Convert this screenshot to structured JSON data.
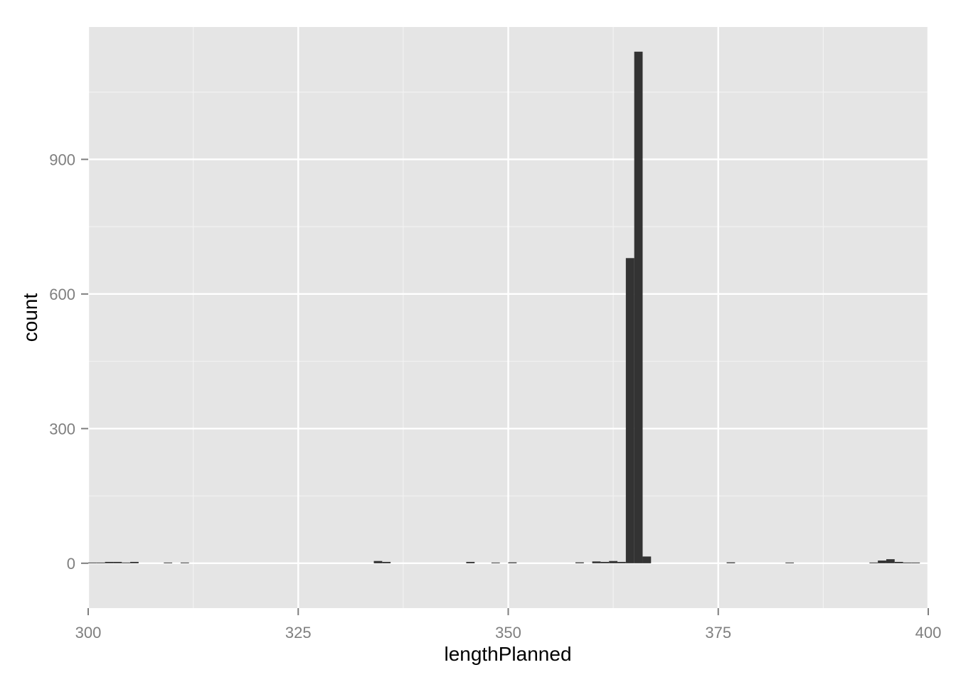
{
  "chart_data": {
    "type": "bar",
    "xlabel": "lengthPlanned",
    "ylabel": "count",
    "xlim": [
      300,
      400
    ],
    "ylim": [
      -100,
      1195
    ],
    "x_ticks": [
      300,
      325,
      350,
      375,
      400
    ],
    "x_tick_labels": [
      "300",
      "325",
      "350",
      "375",
      "400"
    ],
    "y_ticks": [
      0,
      300,
      600,
      900
    ],
    "y_tick_labels": [
      "0",
      "300",
      "600",
      "900"
    ],
    "bin_width": 1,
    "bins": [
      {
        "x": 300,
        "count": 1
      },
      {
        "x": 301,
        "count": 1
      },
      {
        "x": 302,
        "count": 3
      },
      {
        "x": 303,
        "count": 3
      },
      {
        "x": 304,
        "count": 1
      },
      {
        "x": 305,
        "count": 3
      },
      {
        "x": 309,
        "count": 1
      },
      {
        "x": 311,
        "count": 1
      },
      {
        "x": 334,
        "count": 5
      },
      {
        "x": 335,
        "count": 3
      },
      {
        "x": 345,
        "count": 3
      },
      {
        "x": 348,
        "count": 1
      },
      {
        "x": 350,
        "count": 2
      },
      {
        "x": 358,
        "count": 2
      },
      {
        "x": 360,
        "count": 4
      },
      {
        "x": 361,
        "count": 3
      },
      {
        "x": 362,
        "count": 5
      },
      {
        "x": 363,
        "count": 3
      },
      {
        "x": 364,
        "count": 680
      },
      {
        "x": 365,
        "count": 1140
      },
      {
        "x": 366,
        "count": 15
      },
      {
        "x": 376,
        "count": 2
      },
      {
        "x": 383,
        "count": 1
      },
      {
        "x": 393,
        "count": 1
      },
      {
        "x": 394,
        "count": 6
      },
      {
        "x": 395,
        "count": 9
      },
      {
        "x": 396,
        "count": 3
      },
      {
        "x": 397,
        "count": 1
      },
      {
        "x": 398,
        "count": 1
      }
    ],
    "grid": true,
    "colors": {
      "panel": "#e5e5e5",
      "grid_major": "#ffffff",
      "grid_minor": "#f2f2f2",
      "bar": "#333333",
      "tick": "#7f7f7f"
    }
  }
}
